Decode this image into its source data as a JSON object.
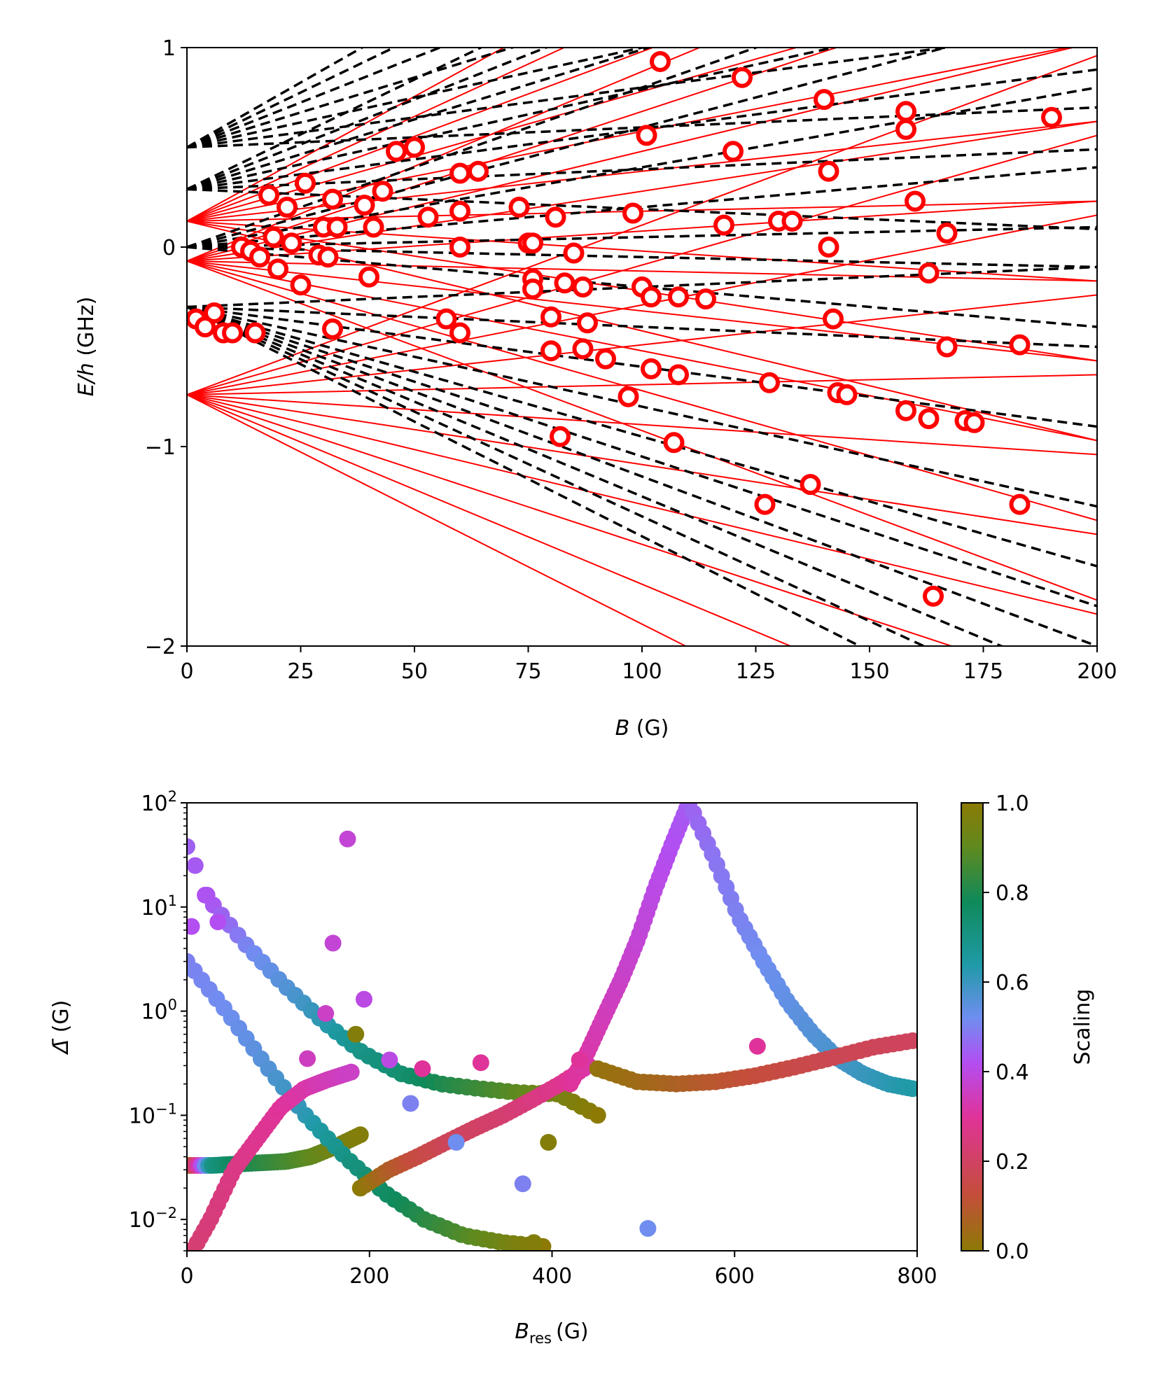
{
  "colors": {
    "level_line": "#ff0000",
    "reference_line": "#000000",
    "resonance_marker_edge": "#ff0000",
    "resonance_marker_fill": "#ffffff",
    "colormap_stops": [
      "#8c7a05",
      "#c44e3a",
      "#e0339a",
      "#b34ef2",
      "#6f8ef0",
      "#1f9aa6",
      "#0f8a5a",
      "#5f8a1f",
      "#8c7a05"
    ]
  },
  "chart_data": [
    {
      "type": "line",
      "title": "",
      "xlabel_italic": "B",
      "xlabel_unit": "(G)",
      "ylabel_italic": "E/h",
      "ylabel_unit": "(GHz)",
      "xlim": [
        0,
        200
      ],
      "ylim": [
        -2,
        1
      ],
      "xticks": [
        "0",
        "25",
        "50",
        "75",
        "100",
        "125",
        "150",
        "175",
        "200"
      ],
      "yticks": [
        "1",
        "0",
        "−1",
        "−2"
      ],
      "ytick_values": [
        1,
        0,
        -1,
        -2
      ],
      "red_levels_zero_field_energies": [
        0.13,
        -0.07,
        -0.74
      ],
      "red_levels": [
        {
          "E0": 0.13,
          "slopes": [
            0.0125,
            0.0105,
            0.0085,
            0.0065,
            0.0045,
            0.0025,
            0.0005,
            -0.0015,
            -0.0035,
            -0.0055
          ]
        },
        {
          "E0": -0.07,
          "slopes": [
            0.0095,
            0.0075,
            0.0055,
            0.0035,
            0.0015,
            -0.0005,
            -0.0025,
            -0.0045,
            -0.0065,
            -0.0085
          ]
        },
        {
          "E0": -0.74,
          "slopes": [
            0.0085,
            0.0065,
            0.0045,
            0.0025,
            0.0005,
            -0.0015,
            -0.0035,
            -0.0055,
            -0.0075,
            -0.0095,
            -0.0115
          ]
        }
      ],
      "black_levels": [
        {
          "E0": 0.5,
          "slopes": [
            0.013,
            0.011,
            0.009,
            0.007,
            0.005,
            0.003,
            0.001
          ]
        },
        {
          "E0": 0.29,
          "slopes": [
            0.011,
            0.009,
            0.007,
            0.005,
            0.003,
            0.001,
            -0.001
          ]
        },
        {
          "E0": 0.0,
          "slopes": [
            0.008,
            0.006,
            0.004,
            0.002,
            0.0005,
            -0.0005,
            -0.002
          ]
        },
        {
          "E0": -0.3,
          "slopes": [
            0.001,
            -0.001,
            -0.003,
            -0.005,
            -0.0065,
            -0.0075,
            -0.0085,
            -0.0095,
            -0.0105,
            -0.0115
          ]
        }
      ],
      "resonances": [
        [
          104,
          0.93
        ],
        [
          122,
          0.85
        ],
        [
          140,
          0.74
        ],
        [
          158,
          0.68
        ],
        [
          190,
          0.65
        ],
        [
          101,
          0.56
        ],
        [
          158,
          0.59
        ],
        [
          46,
          0.48
        ],
        [
          50,
          0.5
        ],
        [
          120,
          0.48
        ],
        [
          60,
          0.37
        ],
        [
          64,
          0.38
        ],
        [
          141,
          0.38
        ],
        [
          26,
          0.32
        ],
        [
          43,
          0.28
        ],
        [
          18,
          0.26
        ],
        [
          32,
          0.24
        ],
        [
          160,
          0.23
        ],
        [
          22,
          0.2
        ],
        [
          39,
          0.21
        ],
        [
          73,
          0.2
        ],
        [
          98,
          0.17
        ],
        [
          60,
          0.18
        ],
        [
          81,
          0.15
        ],
        [
          53,
          0.15
        ],
        [
          118,
          0.11
        ],
        [
          130,
          0.13
        ],
        [
          133,
          0.13
        ],
        [
          30,
          0.1
        ],
        [
          33,
          0.1
        ],
        [
          41,
          0.1
        ],
        [
          167,
          0.07
        ],
        [
          19,
          0.05
        ],
        [
          12,
          0.0
        ],
        [
          23,
          0.02
        ],
        [
          75,
          0.02
        ],
        [
          76,
          0.02
        ],
        [
          60,
          0.0
        ],
        [
          141,
          0.0
        ],
        [
          14,
          -0.02
        ],
        [
          16,
          -0.05
        ],
        [
          29,
          -0.04
        ],
        [
          31,
          -0.05
        ],
        [
          85,
          -0.03
        ],
        [
          20,
          -0.11
        ],
        [
          40,
          -0.15
        ],
        [
          163,
          -0.13
        ],
        [
          25,
          -0.19
        ],
        [
          76,
          -0.16
        ],
        [
          76,
          -0.21
        ],
        [
          83,
          -0.18
        ],
        [
          87,
          -0.2
        ],
        [
          100,
          -0.2
        ],
        [
          102,
          -0.25
        ],
        [
          108,
          -0.25
        ],
        [
          114,
          -0.26
        ],
        [
          6,
          -0.33
        ],
        [
          2,
          -0.36
        ],
        [
          57,
          -0.36
        ],
        [
          80,
          -0.35
        ],
        [
          88,
          -0.38
        ],
        [
          142,
          -0.36
        ],
        [
          4,
          -0.4
        ],
        [
          8,
          -0.43
        ],
        [
          10,
          -0.43
        ],
        [
          15,
          -0.43
        ],
        [
          32,
          -0.41
        ],
        [
          60,
          -0.43
        ],
        [
          80,
          -0.52
        ],
        [
          87,
          -0.51
        ],
        [
          92,
          -0.56
        ],
        [
          102,
          -0.61
        ],
        [
          108,
          -0.64
        ],
        [
          128,
          -0.68
        ],
        [
          143,
          -0.73
        ],
        [
          145,
          -0.74
        ],
        [
          97,
          -0.75
        ],
        [
          158,
          -0.82
        ],
        [
          163,
          -0.86
        ],
        [
          171,
          -0.87
        ],
        [
          173,
          -0.88
        ],
        [
          183,
          -0.49
        ],
        [
          167,
          -0.5
        ],
        [
          82,
          -0.95
        ],
        [
          107,
          -0.98
        ],
        [
          137,
          -1.19
        ],
        [
          127,
          -1.29
        ],
        [
          183,
          -1.29
        ],
        [
          164,
          -1.75
        ]
      ]
    },
    {
      "type": "scatter",
      "title": "",
      "xlabel_italic": "B",
      "xlabel_subscript": "res",
      "xlabel_unit": "(G)",
      "ylabel_symbol": "Δ̄",
      "ylabel_unit": "(G)",
      "xlim": [
        0,
        800
      ],
      "ylim": [
        0.005,
        100
      ],
      "yscale": "log",
      "xticks": [
        "0",
        "200",
        "400",
        "600",
        "800"
      ],
      "ytick_decades": [
        {
          "base": "10",
          "exp": "2",
          "value": 100
        },
        {
          "base": "10",
          "exp": "1",
          "value": 10
        },
        {
          "base": "10",
          "exp": "0",
          "value": 1
        },
        {
          "base": "10",
          "exp": "−1",
          "value": 0.1
        },
        {
          "base": "10",
          "exp": "−2",
          "value": 0.01
        }
      ],
      "colorbar": {
        "label": "Scaling",
        "range": [
          0,
          1
        ],
        "ticks": [
          "1.0",
          "0.8",
          "0.6",
          "0.4",
          "0.2",
          "0.0"
        ],
        "tick_values": [
          1.0,
          0.8,
          0.6,
          0.4,
          0.2,
          0.0
        ]
      },
      "series": [
        {
          "name": "olive-teal plateau",
          "x_range": [
            0,
            190
          ],
          "delta": [
            0.033,
            0.033,
            0.034,
            0.035,
            0.036,
            0.04,
            0.05,
            0.065
          ],
          "scaling": [
            0.02,
            0.7,
            0.78,
            0.82,
            0.86,
            0.9,
            0.95,
            0.98
          ]
        },
        {
          "name": "blue descending to green",
          "x_range": [
            0,
            390
          ],
          "delta": [
            3.0,
            1.0,
            0.3,
            0.1,
            0.04,
            0.018,
            0.01,
            0.007,
            0.006,
            0.0055
          ],
          "scaling": [
            0.5,
            0.52,
            0.56,
            0.62,
            0.7,
            0.76,
            0.82,
            0.88,
            0.94,
            1.0
          ]
        },
        {
          "name": "purple-teal main curve",
          "x_range": [
            20,
            450
          ],
          "delta": [
            13,
            4.5,
            1.8,
            0.8,
            0.4,
            0.25,
            0.2,
            0.18,
            0.165,
            0.16,
            0.1
          ],
          "scaling": [
            0.42,
            0.5,
            0.56,
            0.62,
            0.7,
            0.74,
            0.8,
            0.85,
            0.9,
            0.95,
            1.0
          ]
        },
        {
          "name": "pink rising",
          "x_range": [
            0,
            180
          ],
          "delta": [
            0.004,
            0.01,
            0.03,
            0.06,
            0.12,
            0.18,
            0.22,
            0.26
          ],
          "scaling": [
            0.22,
            0.24,
            0.26,
            0.28,
            0.3,
            0.32,
            0.34,
            0.36
          ]
        },
        {
          "name": "brown-pink rising",
          "x_range": [
            190,
            440
          ],
          "delta": [
            0.02,
            0.03,
            0.04,
            0.055,
            0.075,
            0.1,
            0.14,
            0.2,
            0.3
          ],
          "scaling": [
            0.0,
            0.08,
            0.14,
            0.18,
            0.2,
            0.22,
            0.25,
            0.28,
            0.32
          ]
        },
        {
          "name": "magenta peak",
          "x_range": [
            420,
            550
          ],
          "delta": [
            0.2,
            0.4,
            0.9,
            2.0,
            5.0,
            15,
            40,
            100
          ],
          "scaling": [
            0.3,
            0.32,
            0.34,
            0.36,
            0.38,
            0.4,
            0.42,
            0.44
          ]
        },
        {
          "name": "blue falling after peak",
          "x_range": [
            550,
            795
          ],
          "delta": [
            100,
            30,
            8,
            3,
            1.2,
            0.6,
            0.35,
            0.25,
            0.2,
            0.18
          ],
          "scaling": [
            0.45,
            0.48,
            0.5,
            0.52,
            0.54,
            0.56,
            0.58,
            0.6,
            0.62,
            0.64
          ]
        },
        {
          "name": "olive-red rising",
          "x_range": [
            450,
            795
          ],
          "delta": [
            0.28,
            0.21,
            0.2,
            0.21,
            0.24,
            0.29,
            0.36,
            0.45,
            0.52
          ],
          "scaling": [
            0.02,
            0.04,
            0.07,
            0.1,
            0.13,
            0.15,
            0.17,
            0.18,
            0.19
          ]
        },
        {
          "name": "scattered points",
          "x": [
            176,
            152,
            160,
            132,
            194,
            258,
            245,
            322,
            295,
            368,
            380,
            396,
            430,
            222,
            185,
            505,
            625,
            0,
            9,
            22,
            34,
            5
          ],
          "delta": [
            45,
            0.95,
            4.5,
            0.35,
            1.3,
            0.28,
            0.13,
            0.32,
            0.055,
            0.022,
            0.006,
            0.055,
            0.34,
            0.34,
            0.6,
            0.0082,
            0.46,
            38,
            25,
            13,
            7.2,
            6.5
          ],
          "scaling": [
            0.38,
            0.36,
            0.38,
            0.35,
            0.4,
            0.3,
            0.5,
            0.3,
            0.52,
            0.5,
            0.98,
            0.98,
            0.3,
            0.4,
            0.98,
            0.52,
            0.3,
            0.45,
            0.44,
            0.43,
            0.42,
            0.42
          ]
        }
      ]
    }
  ]
}
